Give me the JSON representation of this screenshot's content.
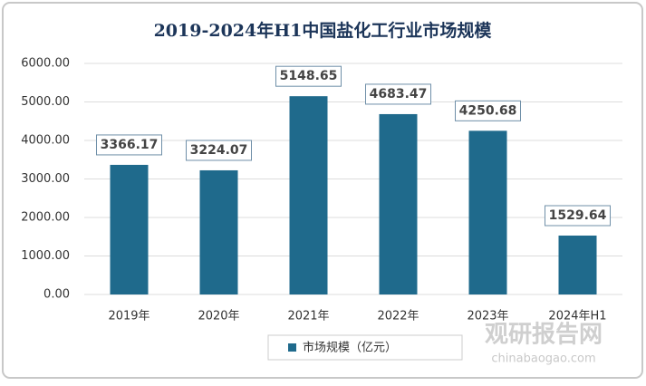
{
  "chart_data": {
    "type": "bar",
    "title": "2019-2024年H1中国盐化工行业市场规模",
    "categories": [
      "2019年",
      "2020年",
      "2021年",
      "2022年",
      "2023年",
      "2024年H1"
    ],
    "series": [
      {
        "name": "市场规模（亿元）",
        "color": "#1f6a8c",
        "values": [
          3366.17,
          3224.07,
          5148.65,
          4683.47,
          4250.68,
          1529.64
        ]
      }
    ],
    "ylim": [
      0,
      6000
    ],
    "yticks": [
      {
        "value": 0,
        "label": "0.00"
      },
      {
        "value": 1000,
        "label": "1000.00"
      },
      {
        "value": 2000,
        "label": "2000.00"
      },
      {
        "value": 3000,
        "label": "3000.00"
      },
      {
        "value": 4000,
        "label": "4000.00"
      },
      {
        "value": 5000,
        "label": "5000.00"
      },
      {
        "value": 6000,
        "label": "6000.00"
      }
    ],
    "grid": true,
    "legend": "bottom",
    "watermark": {
      "name": "观研报告网",
      "url": "chinabaogao.com"
    }
  }
}
